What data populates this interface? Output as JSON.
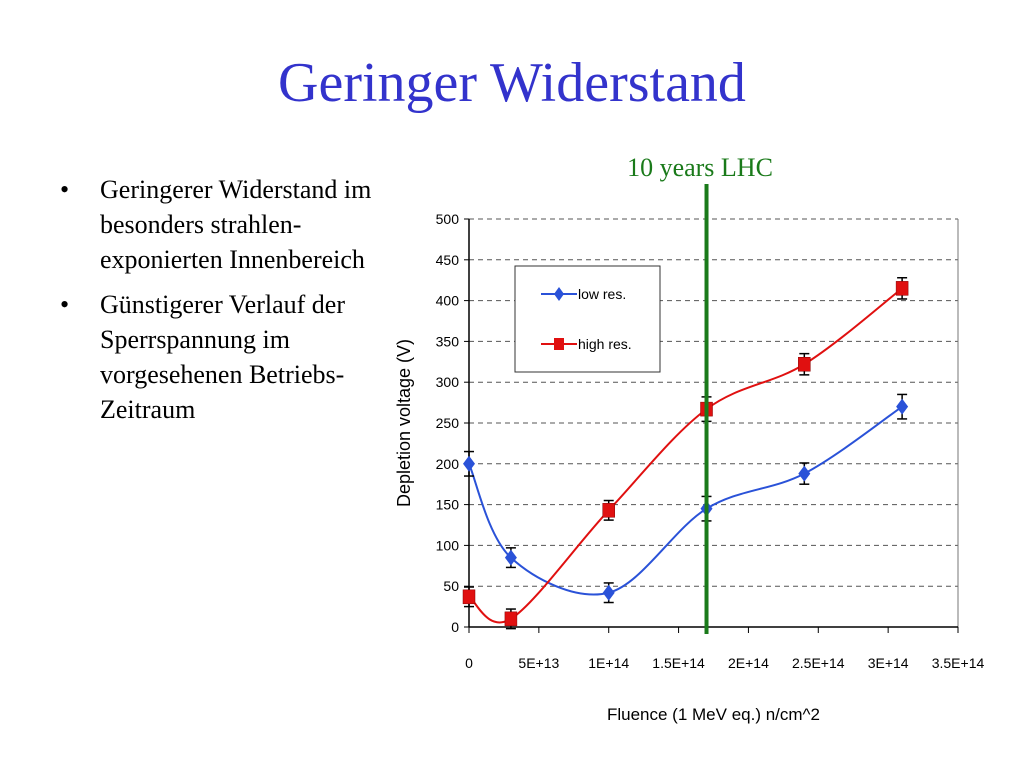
{
  "slide": {
    "title": "Geringer Widerstand",
    "title_color": "#3333cc",
    "bullets": [
      "Geringerer Widerstand im besonders strahlen-exponierten Innenbereich",
      "Günstigerer Verlauf der Sperrspannung im vorgesehenen Betriebs-Zeitraum"
    ],
    "bullet_symbol": "•"
  },
  "chart_data": {
    "type": "line",
    "xlabel": "Fluence (1 MeV eq.)  n/cm^2",
    "ylabel": "Depletion voltage (V)",
    "xlim": [
      0,
      350000000000000.0
    ],
    "ylim": [
      0,
      500
    ],
    "x_ticks": [
      0,
      50000000000000.0,
      100000000000000.0,
      150000000000000.0,
      200000000000000.0,
      250000000000000.0,
      300000000000000.0,
      350000000000000.0
    ],
    "x_tick_labels": [
      "0",
      "5E+13",
      "1E+14",
      "1.5E+14",
      "2E+14",
      "2.5E+14",
      "3E+14",
      "3.5E+14"
    ],
    "y_ticks": [
      0,
      50,
      100,
      150,
      200,
      250,
      300,
      350,
      400,
      450,
      500
    ],
    "y_tick_labels": [
      "0",
      "50",
      "100",
      "150",
      "200",
      "250",
      "300",
      "350",
      "400",
      "450",
      "500"
    ],
    "grid": "horizontal dashed",
    "legend_position": "top-left",
    "series": [
      {
        "name": "low res.",
        "color": "#2a52d8",
        "marker": "diamond",
        "x": [
          0,
          30000000000000.0,
          100000000000000.0,
          170000000000000.0,
          240000000000000.0,
          310000000000000.0
        ],
        "y": [
          200,
          85,
          42,
          145,
          188,
          270
        ],
        "error": [
          15,
          12,
          12,
          15,
          13,
          15
        ]
      },
      {
        "name": "high res.",
        "color": "#e01010",
        "marker": "square",
        "x": [
          0,
          30000000000000.0,
          100000000000000.0,
          170000000000000.0,
          240000000000000.0,
          310000000000000.0
        ],
        "y": [
          37,
          10,
          143,
          267,
          322,
          415
        ],
        "error": [
          12,
          12,
          12,
          15,
          13,
          13
        ]
      }
    ],
    "annotations": [
      {
        "type": "vline",
        "x": 170000000000000.0,
        "label": "10 years LHC",
        "color": "#1a7a1a"
      }
    ]
  }
}
